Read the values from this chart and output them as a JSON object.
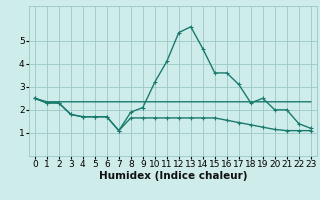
{
  "title": "",
  "xlabel": "Humidex (Indice chaleur)",
  "ylabel": "",
  "x": [
    0,
    1,
    2,
    3,
    4,
    5,
    6,
    7,
    8,
    9,
    10,
    11,
    12,
    13,
    14,
    15,
    16,
    17,
    18,
    19,
    20,
    21,
    22,
    23
  ],
  "line_max": [
    2.5,
    2.3,
    2.3,
    1.8,
    1.7,
    1.7,
    1.7,
    1.1,
    1.9,
    2.1,
    3.2,
    4.1,
    5.35,
    5.6,
    4.65,
    3.6,
    3.6,
    3.1,
    2.3,
    2.5,
    2.0,
    2.0,
    1.4,
    1.2
  ],
  "line_mean": [
    2.5,
    2.35,
    2.35,
    2.35,
    2.35,
    2.35,
    2.35,
    2.35,
    2.35,
    2.35,
    2.35,
    2.35,
    2.35,
    2.35,
    2.35,
    2.35,
    2.35,
    2.35,
    2.35,
    2.35,
    2.35,
    2.35,
    2.35,
    2.35
  ],
  "line_min": [
    2.5,
    2.3,
    2.3,
    1.8,
    1.7,
    1.7,
    1.7,
    1.1,
    1.65,
    1.65,
    1.65,
    1.65,
    1.65,
    1.65,
    1.65,
    1.65,
    1.55,
    1.45,
    1.35,
    1.25,
    1.15,
    1.1,
    1.1,
    1.1
  ],
  "line_color": "#1a7a6e",
  "bg_color": "#ceecea",
  "grid_color": "#9ac8c4",
  "ylim": [
    0,
    6.5
  ],
  "xlim": [
    -0.5,
    23.5
  ],
  "yticks": [
    1,
    2,
    3,
    4,
    5
  ],
  "xticks": [
    0,
    1,
    2,
    3,
    4,
    5,
    6,
    7,
    8,
    9,
    10,
    11,
    12,
    13,
    14,
    15,
    16,
    17,
    18,
    19,
    20,
    21,
    22,
    23
  ],
  "xlabel_fontsize": 7.5,
  "tick_fontsize": 6.5,
  "line_width": 1.0,
  "marker_size": 3
}
